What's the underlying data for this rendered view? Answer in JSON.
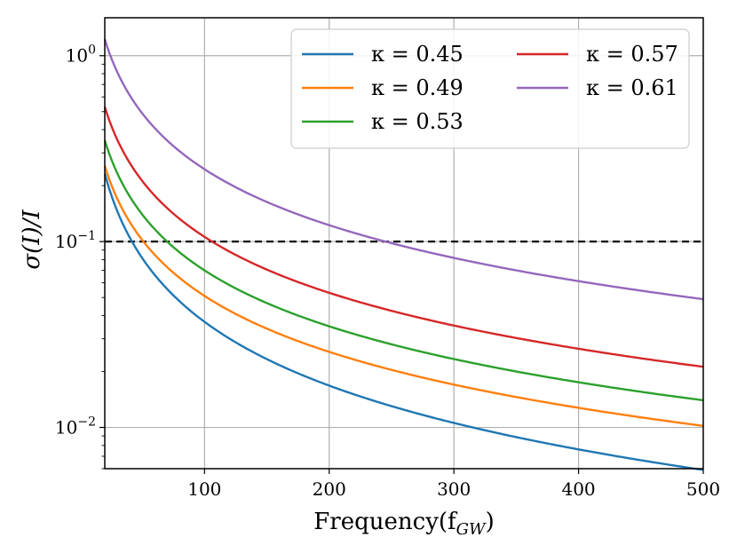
{
  "chart_data": {
    "type": "line",
    "title": "",
    "xlabel": "Frequency(f",
    "xlabel_sub": "GW",
    "xlabel_close": ")",
    "ylabel": "σ(I)/I",
    "xlim": [
      20,
      500
    ],
    "ylim": [
      0.006,
      1.6
    ],
    "yscale": "log",
    "grid": true,
    "x_ticks": [
      100,
      200,
      300,
      400,
      500
    ],
    "x_tick_labels": [
      "100",
      "200",
      "300",
      "400",
      "500"
    ],
    "y_ticks": [
      {
        "value": 1,
        "base": "10",
        "exp": "0"
      },
      {
        "value": 0.1,
        "base": "10",
        "exp": "−1"
      },
      {
        "value": 0.01,
        "base": "10",
        "exp": "−2"
      }
    ],
    "threshold": {
      "value": 0.1,
      "style": "dashed",
      "color": "#000000"
    },
    "legend": {
      "location": "top-right",
      "columns": 2
    },
    "series": [
      {
        "name": "κ = 0.45",
        "color": "#1f77b4",
        "value_at_100": 0.037,
        "exponent": 1.14
      },
      {
        "name": "κ = 0.49",
        "color": "#ff7f0e",
        "value_at_100": 0.051,
        "exponent": 1.0
      },
      {
        "name": "κ = 0.53",
        "color": "#2ca02c",
        "value_at_100": 0.07,
        "exponent": 1.0
      },
      {
        "name": "κ = 0.57",
        "color": "#d62728",
        "value_at_100": 0.106,
        "exponent": 1.0
      },
      {
        "name": "κ = 0.61",
        "color": "#9467bd",
        "value_at_100": 0.245,
        "exponent": 1.0
      }
    ]
  }
}
